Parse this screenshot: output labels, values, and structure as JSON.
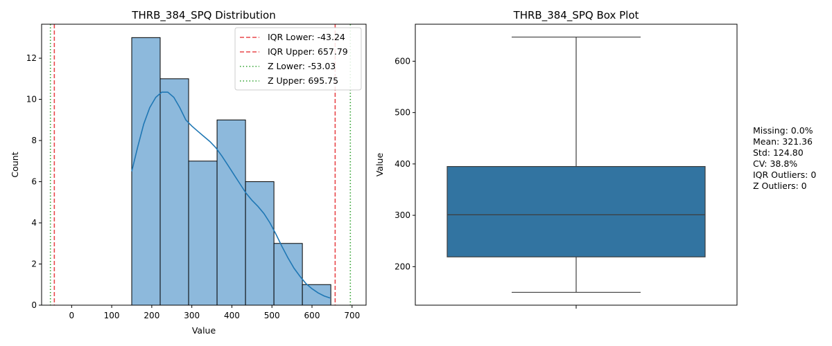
{
  "chart_data": [
    {
      "type": "histogram",
      "title": "THRB_384_SPQ Distribution",
      "xlabel": "Value",
      "ylabel": "Count",
      "xlim": [
        -75,
        735
      ],
      "ylim": [
        0,
        13.65
      ],
      "xticks": [
        0,
        100,
        200,
        300,
        400,
        500,
        600,
        700
      ],
      "yticks": [
        0,
        2,
        4,
        6,
        8,
        10,
        12
      ],
      "bins": [
        {
          "x0": 150,
          "x1": 221,
          "count": 13
        },
        {
          "x0": 221,
          "x1": 292,
          "count": 11
        },
        {
          "x0": 292,
          "x1": 363,
          "count": 7
        },
        {
          "x0": 363,
          "x1": 434,
          "count": 9
        },
        {
          "x0": 434,
          "x1": 505,
          "count": 6
        },
        {
          "x0": 505,
          "x1": 576,
          "count": 3
        },
        {
          "x0": 576,
          "x1": 647,
          "count": 1
        }
      ],
      "kde": [
        [
          150,
          6.5
        ],
        [
          165,
          7.7
        ],
        [
          180,
          8.8
        ],
        [
          195,
          9.6
        ],
        [
          210,
          10.1
        ],
        [
          225,
          10.35
        ],
        [
          240,
          10.35
        ],
        [
          255,
          10.1
        ],
        [
          270,
          9.6
        ],
        [
          285,
          9.0
        ],
        [
          300,
          8.7
        ],
        [
          315,
          8.45
        ],
        [
          330,
          8.2
        ],
        [
          345,
          7.95
        ],
        [
          360,
          7.65
        ],
        [
          375,
          7.25
        ],
        [
          390,
          6.8
        ],
        [
          405,
          6.35
        ],
        [
          420,
          5.9
        ],
        [
          435,
          5.45
        ],
        [
          450,
          5.1
        ],
        [
          465,
          4.8
        ],
        [
          480,
          4.45
        ],
        [
          495,
          4.0
        ],
        [
          510,
          3.45
        ],
        [
          525,
          2.85
        ],
        [
          540,
          2.3
        ],
        [
          555,
          1.8
        ],
        [
          570,
          1.4
        ],
        [
          585,
          1.05
        ],
        [
          600,
          0.8
        ],
        [
          615,
          0.6
        ],
        [
          630,
          0.45
        ],
        [
          645,
          0.35
        ]
      ],
      "vlines": [
        {
          "label": "IQR Lower: -43.24",
          "x": -43.24,
          "color": "#e8474a",
          "style": "dashed"
        },
        {
          "label": "IQR Upper: 657.79",
          "x": 657.79,
          "color": "#e8474a",
          "style": "dashed"
        },
        {
          "label": "Z Lower: -53.03",
          "x": -53.03,
          "color": "#2ca02c",
          "style": "dotted"
        },
        {
          "label": "Z Upper: 695.75",
          "x": 695.75,
          "color": "#2ca02c",
          "style": "dotted"
        }
      ],
      "legend_position": "top-right",
      "bar_color": "#8db9dc",
      "kde_color": "#1f77b4"
    },
    {
      "type": "box",
      "title": "THRB_384_SPQ Box Plot",
      "ylabel": "Value",
      "ylim": [
        125,
        672
      ],
      "yticks": [
        200,
        300,
        400,
        500,
        600
      ],
      "whisker_low": 150,
      "q1": 219,
      "median": 301,
      "q3": 395,
      "whisker_high": 647,
      "box_color": "#3274a1"
    }
  ],
  "stats": {
    "lines": [
      "Missing: 0.0%",
      "Mean: 321.36",
      "Std: 124.80",
      "CV: 38.8%",
      "IQR Outliers: 0",
      "Z Outliers: 0"
    ]
  }
}
